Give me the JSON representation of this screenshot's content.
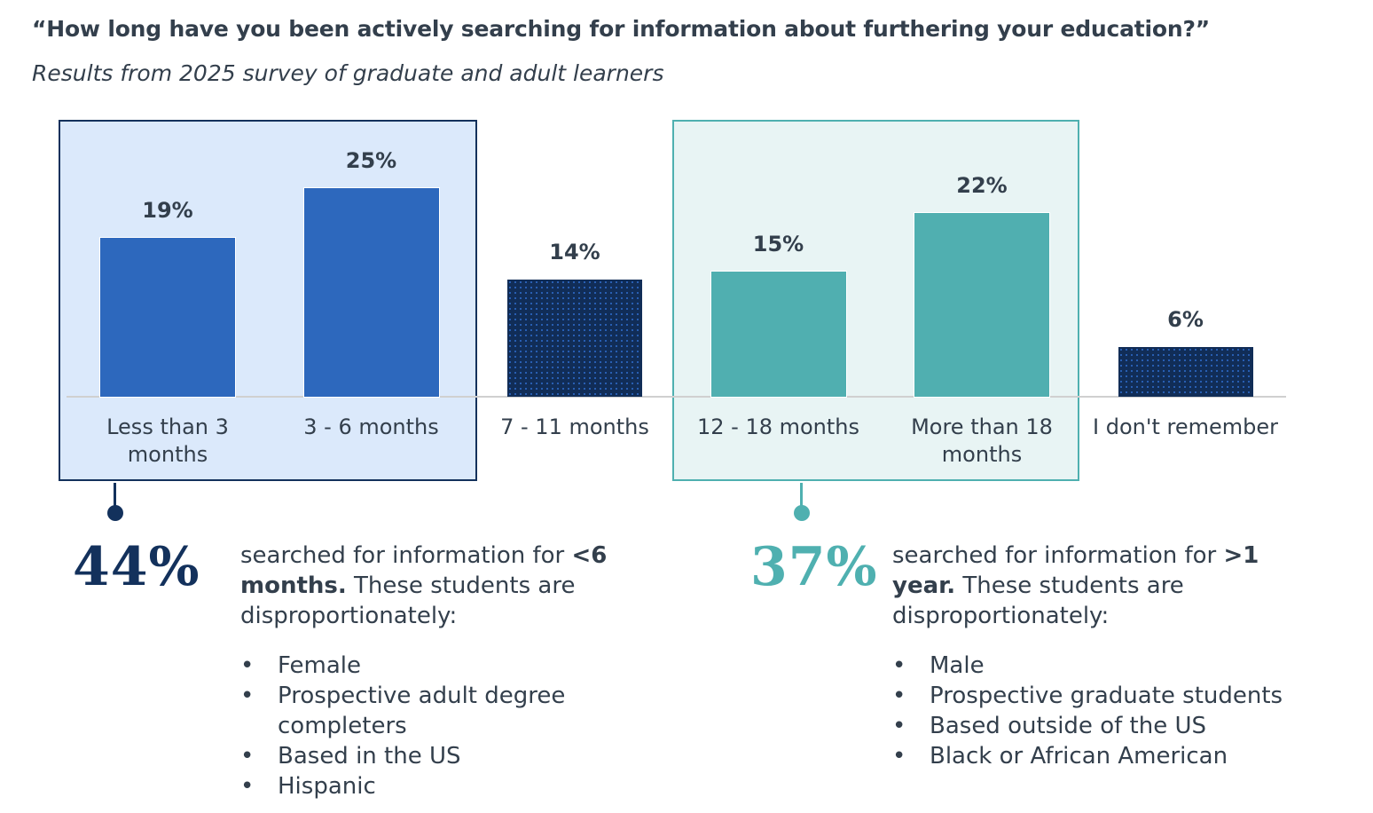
{
  "chart_data": {
    "type": "bar",
    "title": "“How long have you been actively searching for information about furthering your education?”",
    "subtitle": "Results from 2025 survey of graduate and adult learners",
    "categories": [
      "Less than 3 months",
      "3 - 6 months",
      "7 - 11 months",
      "12 - 18 months",
      "More than 18 months",
      "I don't remember"
    ],
    "values": [
      19,
      25,
      14,
      15,
      22,
      6
    ],
    "value_labels": [
      "19%",
      "25%",
      "14%",
      "15%",
      "22%",
      "6%"
    ],
    "bar_colors": [
      "#2d68bd",
      "#2d68bd",
      "#112d57",
      "#50afb0",
      "#50afb0",
      "#112d57"
    ],
    "ylim": [
      0,
      25
    ],
    "xlabel": "",
    "ylabel": ""
  },
  "groups": [
    {
      "percent": "44%",
      "color": "#13315c",
      "text_pre": "searched for information for ",
      "text_bold": "<6 months.",
      "text_post": " These students are disproportionately:",
      "bullets": [
        "Female",
        "Prospective adult degree completers",
        "Based in the US",
        "Hispanic"
      ]
    },
    {
      "percent": "37%",
      "color": "#4fb0b0",
      "text_pre": "searched for information for ",
      "text_bold": ">1 year.",
      "text_post": " These students are disproportionately:",
      "bullets": [
        "Male",
        "Prospective graduate students",
        "Based outside of the US",
        "Black or African American"
      ]
    }
  ],
  "bullet_char": "•"
}
